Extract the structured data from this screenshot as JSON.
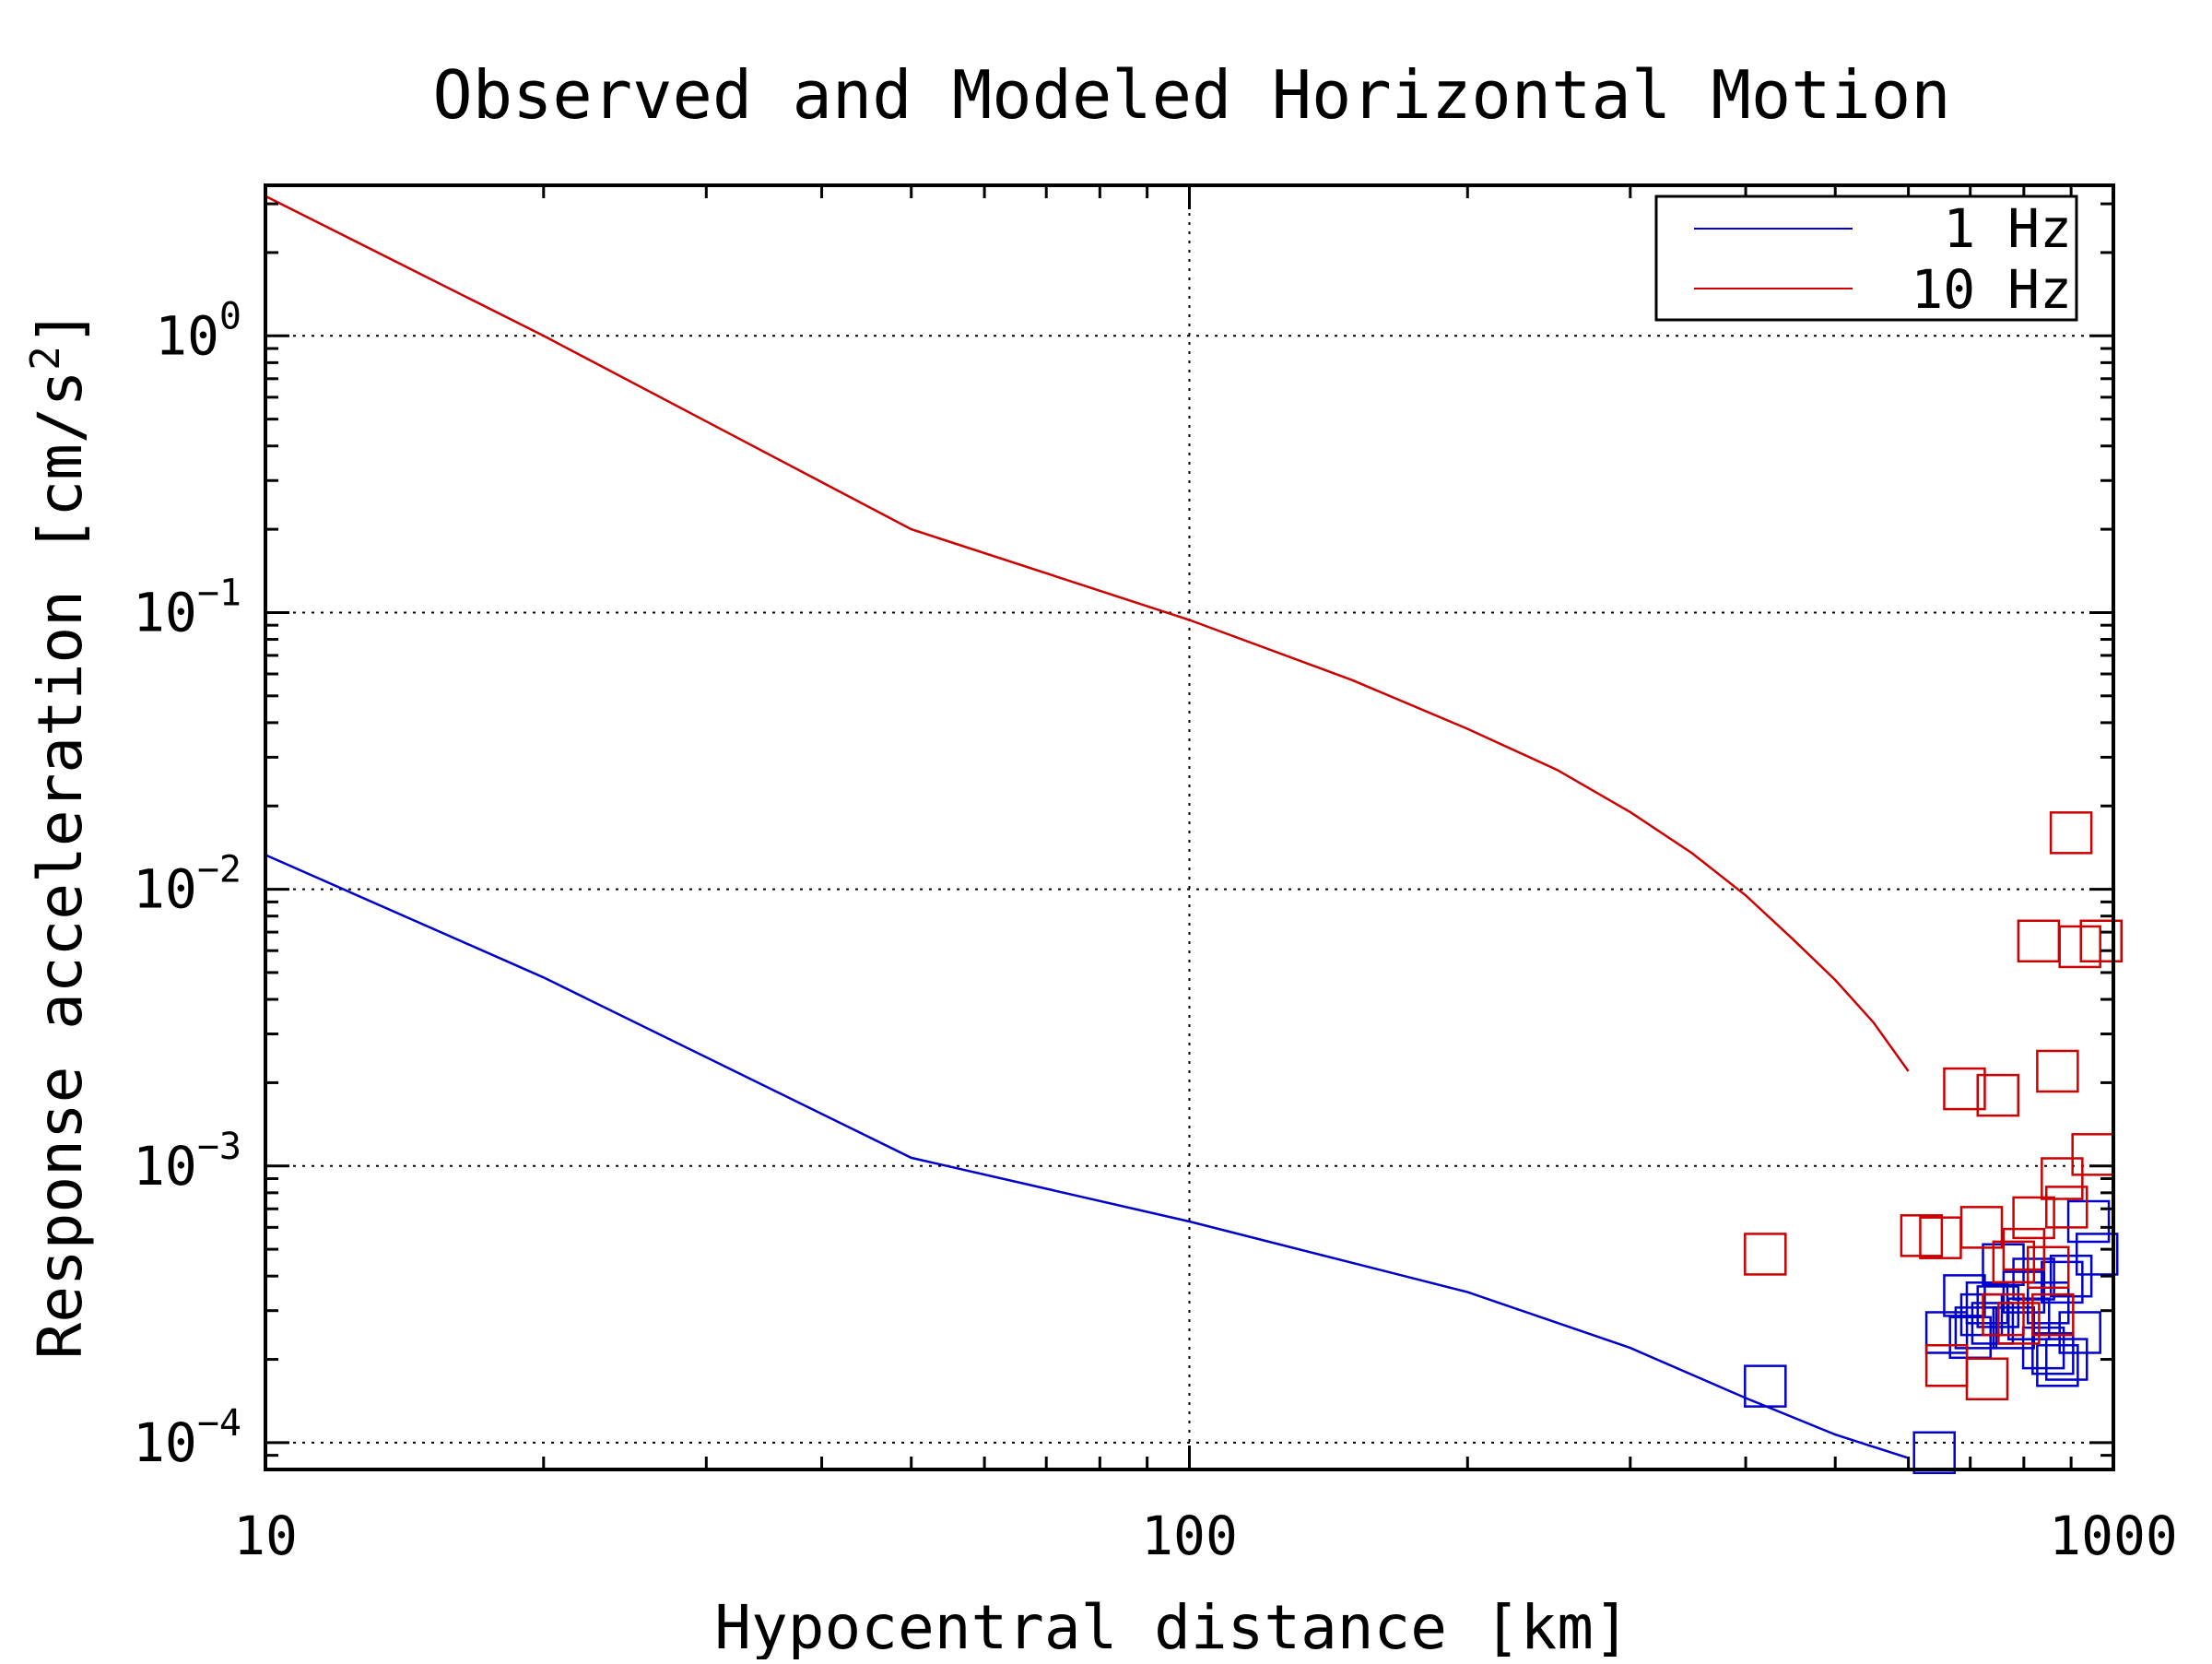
{
  "chart_data": {
    "type": "scatter",
    "title": "Observed and Modeled Horizontal Motion",
    "xlabel": "Hypocentral distance [km]",
    "ylabel": "Response acceleration [cm/s",
    "ylabel_superscript": "2",
    "ylabel_suffix": "]",
    "xscale": "log",
    "yscale": "log",
    "xlim": [
      10,
      1000
    ],
    "ylim": [
      8e-05,
      3.5
    ],
    "grid": true,
    "legend_position": "top-right",
    "x_ticks": [
      {
        "value": 10,
        "label": "10"
      },
      {
        "value": 100,
        "label": "100"
      },
      {
        "value": 1000,
        "label": "1000"
      }
    ],
    "y_ticks": [
      {
        "value": 1,
        "base": "10",
        "exp": "0"
      },
      {
        "value": 0.1,
        "base": "10",
        "exp": "−1"
      },
      {
        "value": 0.01,
        "base": "10",
        "exp": "−2"
      },
      {
        "value": 0.001,
        "base": "10",
        "exp": "−3"
      },
      {
        "value": 0.0001,
        "base": "10",
        "exp": "−4"
      }
    ],
    "series": [
      {
        "name": "1 Hz",
        "color": "#0000cc",
        "line": {
          "x": [
            10,
            20,
            50,
            100,
            200,
            300,
            400,
            500,
            600
          ],
          "y": [
            0.0133,
            0.0048,
            0.00107,
            0.00063,
            0.00035,
            0.00022,
            0.000145,
            0.000107,
            8.8e-05
          ]
        },
        "observed": {
          "x": [
            420,
            640,
            660,
            690,
            700,
            710,
            720,
            730,
            740,
            750,
            760,
            780,
            800,
            810,
            820,
            840,
            850,
            860,
            870,
            880,
            890,
            900,
            920,
            940,
            960
          ],
          "y": [
            0.00016,
            9.2e-05,
            0.00025,
            0.00034,
            0.00024,
            0.00026,
            0.00029,
            0.00032,
            0.00027,
            0.00031,
            0.00044,
            0.00026,
            0.00035,
            0.00028,
            0.00039,
            0.00022,
            0.00032,
            0.00021,
            0.00019,
            0.00038,
            0.0002,
            0.0004,
            0.00025,
            0.00063,
            0.00048
          ]
        }
      },
      {
        "name": "10 Hz",
        "color": "#cc0000",
        "line": {
          "x": [
            10,
            20,
            50,
            100,
            150,
            200,
            250,
            300,
            350,
            400,
            450,
            500,
            550,
            600
          ],
          "y": [
            3.2,
            1.0,
            0.2,
            0.094,
            0.057,
            0.038,
            0.027,
            0.019,
            0.0135,
            0.0095,
            0.0066,
            0.0047,
            0.0033,
            0.0022
          ]
        },
        "observed": {
          "x": [
            420,
            620,
            650,
            660,
            690,
            720,
            730,
            750,
            760,
            780,
            790,
            800,
            820,
            830,
            850,
            860,
            870,
            880,
            890,
            900,
            920,
            950,
            970
          ],
          "y": [
            0.00048,
            0.00056,
            0.00055,
            0.00019,
            0.0019,
            0.0006,
            0.00017,
            0.0018,
            0.00029,
            0.00045,
            0.00027,
            0.0005,
            0.00065,
            0.0065,
            0.00043,
            0.00029,
            0.0022,
            0.0009,
            0.00071,
            0.016,
            0.0062,
            0.0011,
            0.0065
          ]
        }
      }
    ]
  }
}
